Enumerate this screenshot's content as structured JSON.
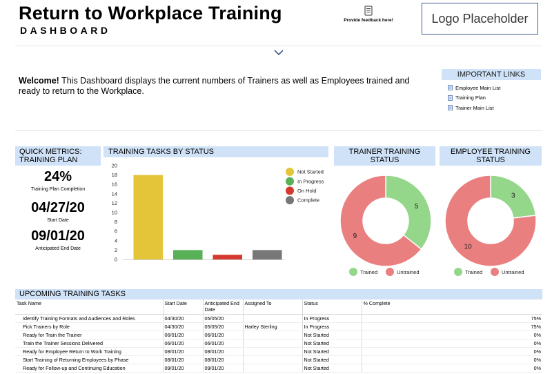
{
  "header": {
    "title": "Return to Workplace Training",
    "subtitle": "DASHBOARD",
    "feedback_label": "Provide feedback here!",
    "logo_text": "Logo Placeholder"
  },
  "welcome": {
    "bold": "Welcome!",
    "text": " This Dashboard displays the current numbers of Trainers as well as Employees trained and ready to return to the Workplace."
  },
  "links": {
    "title": "IMPORTANT LINKS",
    "items": [
      "Employee Main List",
      "Training Plan",
      "Trainer Main List"
    ]
  },
  "quick_metrics": {
    "title_line1": "QUICK METRICS:",
    "title_line2": "TRAINING PLAN",
    "completion_value": "24%",
    "completion_label": "Training Plan Completion",
    "start_value": "04/27/20",
    "start_label": "Start Date",
    "end_value": "09/01/20",
    "end_label": "Anticipated End Date"
  },
  "panels": {
    "tasks_title": "TRAINING TASKS BY STATUS",
    "trainer_title_line1": "TRAINER TRAINING",
    "trainer_title_line2": "STATUS",
    "employee_title_line1": "EMPLOYEE TRAINING",
    "employee_title_line2": "STATUS"
  },
  "chart_data": [
    {
      "type": "bar",
      "title": "TRAINING TASKS BY STATUS",
      "categories": [
        "Not Started",
        "In Progress",
        "On Hold",
        "Complete"
      ],
      "values": [
        18,
        2,
        1,
        2
      ],
      "colors": [
        "#e4c53a",
        "#58b157",
        "#d53a30",
        "#777777"
      ],
      "ylim": [
        0,
        20
      ],
      "yticks": [
        0,
        2,
        4,
        6,
        8,
        10,
        12,
        14,
        16,
        18,
        20
      ],
      "legend": "right"
    },
    {
      "type": "pie",
      "title": "TRAINER TRAINING STATUS",
      "labels": [
        "Trained",
        "Untrained"
      ],
      "values": [
        5,
        9
      ],
      "colors": [
        "#94d68a",
        "#ea7f7f"
      ],
      "legend": "bottom"
    },
    {
      "type": "pie",
      "title": "EMPLOYEE TRAINING STATUS",
      "labels": [
        "Trained",
        "Untrained"
      ],
      "values": [
        3,
        10
      ],
      "colors": [
        "#94d68a",
        "#ea7f7f"
      ],
      "legend": "bottom"
    }
  ],
  "upcoming": {
    "title": "UPCOMING TRAINING TASKS",
    "columns": [
      "Task Name",
      "Start Date",
      "Anticipated End Date",
      "Assigned To",
      "Status",
      "% Complete"
    ],
    "rows": [
      [
        "Identify Training Formats and Audiences and Roles",
        "04/30/20",
        "05/05/20",
        "",
        "In Progress",
        "75%"
      ],
      [
        "Pick Trainers by Role",
        "04/30/20",
        "05/05/20",
        "Harley Sterling",
        "In Progress",
        "75%"
      ],
      [
        "Ready for Train the Trainer",
        "06/01/20",
        "06/01/20",
        "",
        "Not Started",
        "0%"
      ],
      [
        "Train the Trainer Sessions Delivered",
        "06/01/20",
        "06/01/20",
        "",
        "Not Started",
        "0%"
      ],
      [
        "Ready for Employee Return to Work Training",
        "08/01/20",
        "08/01/20",
        "",
        "Not Started",
        "0%"
      ],
      [
        "Start Training of Returning Employees by Phase",
        "08/01/20",
        "08/01/20",
        "",
        "Not Started",
        "0%"
      ],
      [
        "Ready for Follow-up and Continuing Education",
        "09/01/20",
        "09/01/20",
        "",
        "Not Started",
        "0%"
      ]
    ]
  }
}
